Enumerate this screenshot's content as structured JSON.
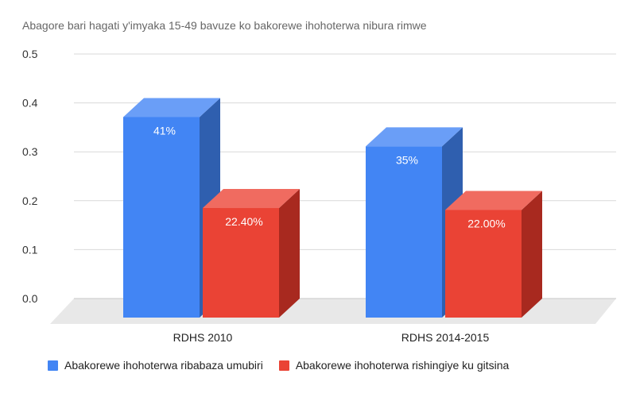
{
  "chart_data": {
    "type": "bar",
    "title": "Abagore bari hagati y'imyaka 15-49 bavuze ko bakorewe ihohoterwa nibura rimwe",
    "categories": [
      "RDHS 2010",
      "RDHS 2014-2015"
    ],
    "series": [
      {
        "name": "Abakorewe ihohoterwa ribabaza umubiri",
        "values": [
          0.41,
          0.35
        ],
        "data_labels": [
          "41%",
          "35%"
        ],
        "color": "#4285f4"
      },
      {
        "name": "Abakorewe ihohoterwa rishingiye ku gitsina",
        "values": [
          0.224,
          0.22
        ],
        "data_labels": [
          "22.40%",
          "22.00%"
        ],
        "color": "#ea4335"
      }
    ],
    "ylim": [
      0,
      0.5
    ],
    "yticks": [
      "0.0",
      "0.1",
      "0.2",
      "0.3",
      "0.4",
      "0.5"
    ],
    "xlabel": "",
    "ylabel": "",
    "grid": true,
    "legend_position": "bottom",
    "style": "3d"
  }
}
